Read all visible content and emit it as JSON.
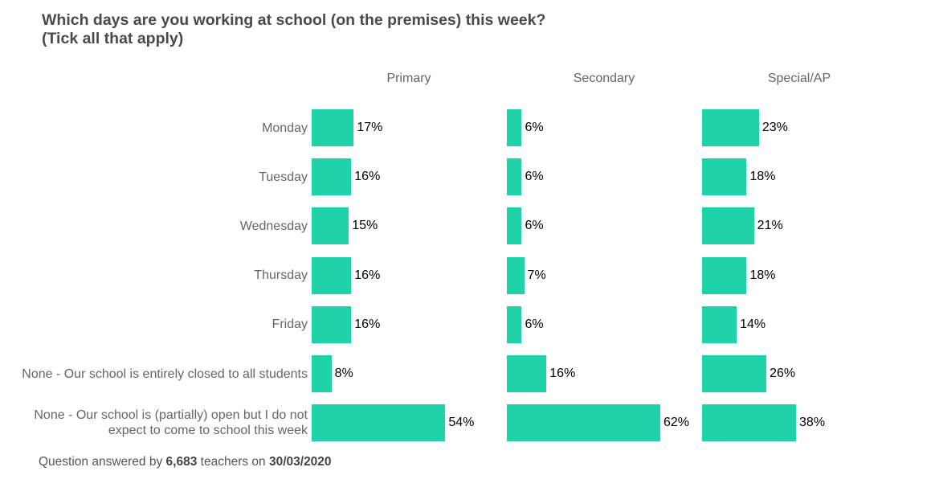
{
  "title_line1": "Which days are you working at school (on the premises) this week?",
  "title_line2": "(Tick all that apply)",
  "footer": {
    "prefix": "Question answered by",
    "count": "6,683",
    "middle": "teachers on",
    "date": "30/03/2020"
  },
  "colors": {
    "bar": "#20d2a8"
  },
  "chart_data": {
    "type": "bar",
    "orientation": "horizontal",
    "title": "Which days are you working at school (on the premises) this week? (Tick all that apply)",
    "categories": [
      "Monday",
      "Tuesday",
      "Wednesday",
      "Thursday",
      "Friday",
      "None - Our school is entirely closed to all students",
      "None - Our school is (partially) open but I do not expect to come to school this week"
    ],
    "series": [
      {
        "name": "Primary",
        "values": [
          17,
          16,
          15,
          16,
          16,
          8,
          54
        ]
      },
      {
        "name": "Secondary",
        "values": [
          6,
          6,
          6,
          7,
          6,
          16,
          62
        ]
      },
      {
        "name": "Special/AP",
        "values": [
          23,
          18,
          21,
          18,
          14,
          26,
          38
        ]
      }
    ],
    "value_suffix": "%",
    "xlim": [
      0,
      100
    ]
  }
}
